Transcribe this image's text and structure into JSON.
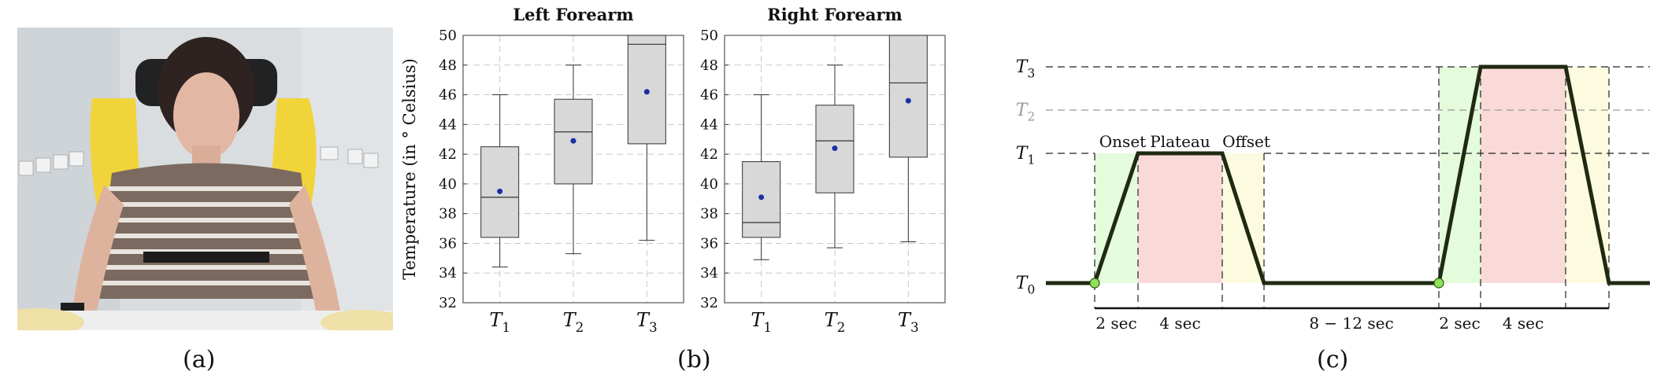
{
  "captions": {
    "a": "(a)",
    "b": "(b)",
    "c": "(c)"
  },
  "panel_b": {
    "ylabel": "Temperature (in ° Celsius)"
  },
  "chart_data": [
    {
      "type": "box",
      "title": "Left Forearm",
      "ylabel": "Temperature (in ° Celsius)",
      "ylim": [
        32,
        50
      ],
      "yticks": [
        32,
        34,
        36,
        38,
        40,
        42,
        44,
        46,
        48,
        50
      ],
      "categories": [
        "T1",
        "T2",
        "T3"
      ],
      "boxes": [
        {
          "min": 34.4,
          "q1": 36.4,
          "median": 39.1,
          "q3": 42.5,
          "max": 46.0,
          "mean": 39.5
        },
        {
          "min": 35.3,
          "q1": 40.0,
          "median": 43.5,
          "q3": 45.7,
          "max": 48.0,
          "mean": 42.9
        },
        {
          "min": 36.2,
          "q1": 42.7,
          "median": 49.4,
          "q3": 50.0,
          "max": 50.0,
          "mean": 46.2
        }
      ],
      "grid": true
    },
    {
      "type": "box",
      "title": "Right Forearm",
      "ylim": [
        32,
        50
      ],
      "yticks": [
        32,
        34,
        36,
        38,
        40,
        42,
        44,
        46,
        48,
        50
      ],
      "categories": [
        "T1",
        "T2",
        "T3"
      ],
      "boxes": [
        {
          "min": 34.9,
          "q1": 36.4,
          "median": 37.4,
          "q3": 41.5,
          "max": 46.0,
          "mean": 39.1
        },
        {
          "min": 35.7,
          "q1": 39.4,
          "median": 42.9,
          "q3": 45.3,
          "max": 48.0,
          "mean": 42.4
        },
        {
          "min": 36.1,
          "q1": 41.8,
          "median": 46.8,
          "q3": 50.0,
          "max": 50.0,
          "mean": 45.6
        }
      ],
      "grid": true
    },
    {
      "type": "line",
      "description_levels": [
        "T0",
        "T1",
        "T2",
        "T3"
      ],
      "stimulus_phases": [
        "Onset",
        "Plateau",
        "Offset"
      ],
      "durations": [
        "2 sec",
        "4 sec",
        "8 − 12 sec",
        "2 sec",
        "4 sec"
      ]
    }
  ],
  "panel_c": {
    "phase_labels": {
      "onset": "Onset",
      "plateau": "Plateau",
      "offset": "Offset"
    },
    "durations": {
      "d1": "2 sec",
      "d2": "4 sec",
      "d3": "8 − 12 sec",
      "d4": "2 sec",
      "d5": "4 sec"
    },
    "colors": {
      "onset": "#e4fbdc",
      "plateau": "#fadad8",
      "offset": "#fdfbdf",
      "marker": "#8fe05a"
    }
  }
}
